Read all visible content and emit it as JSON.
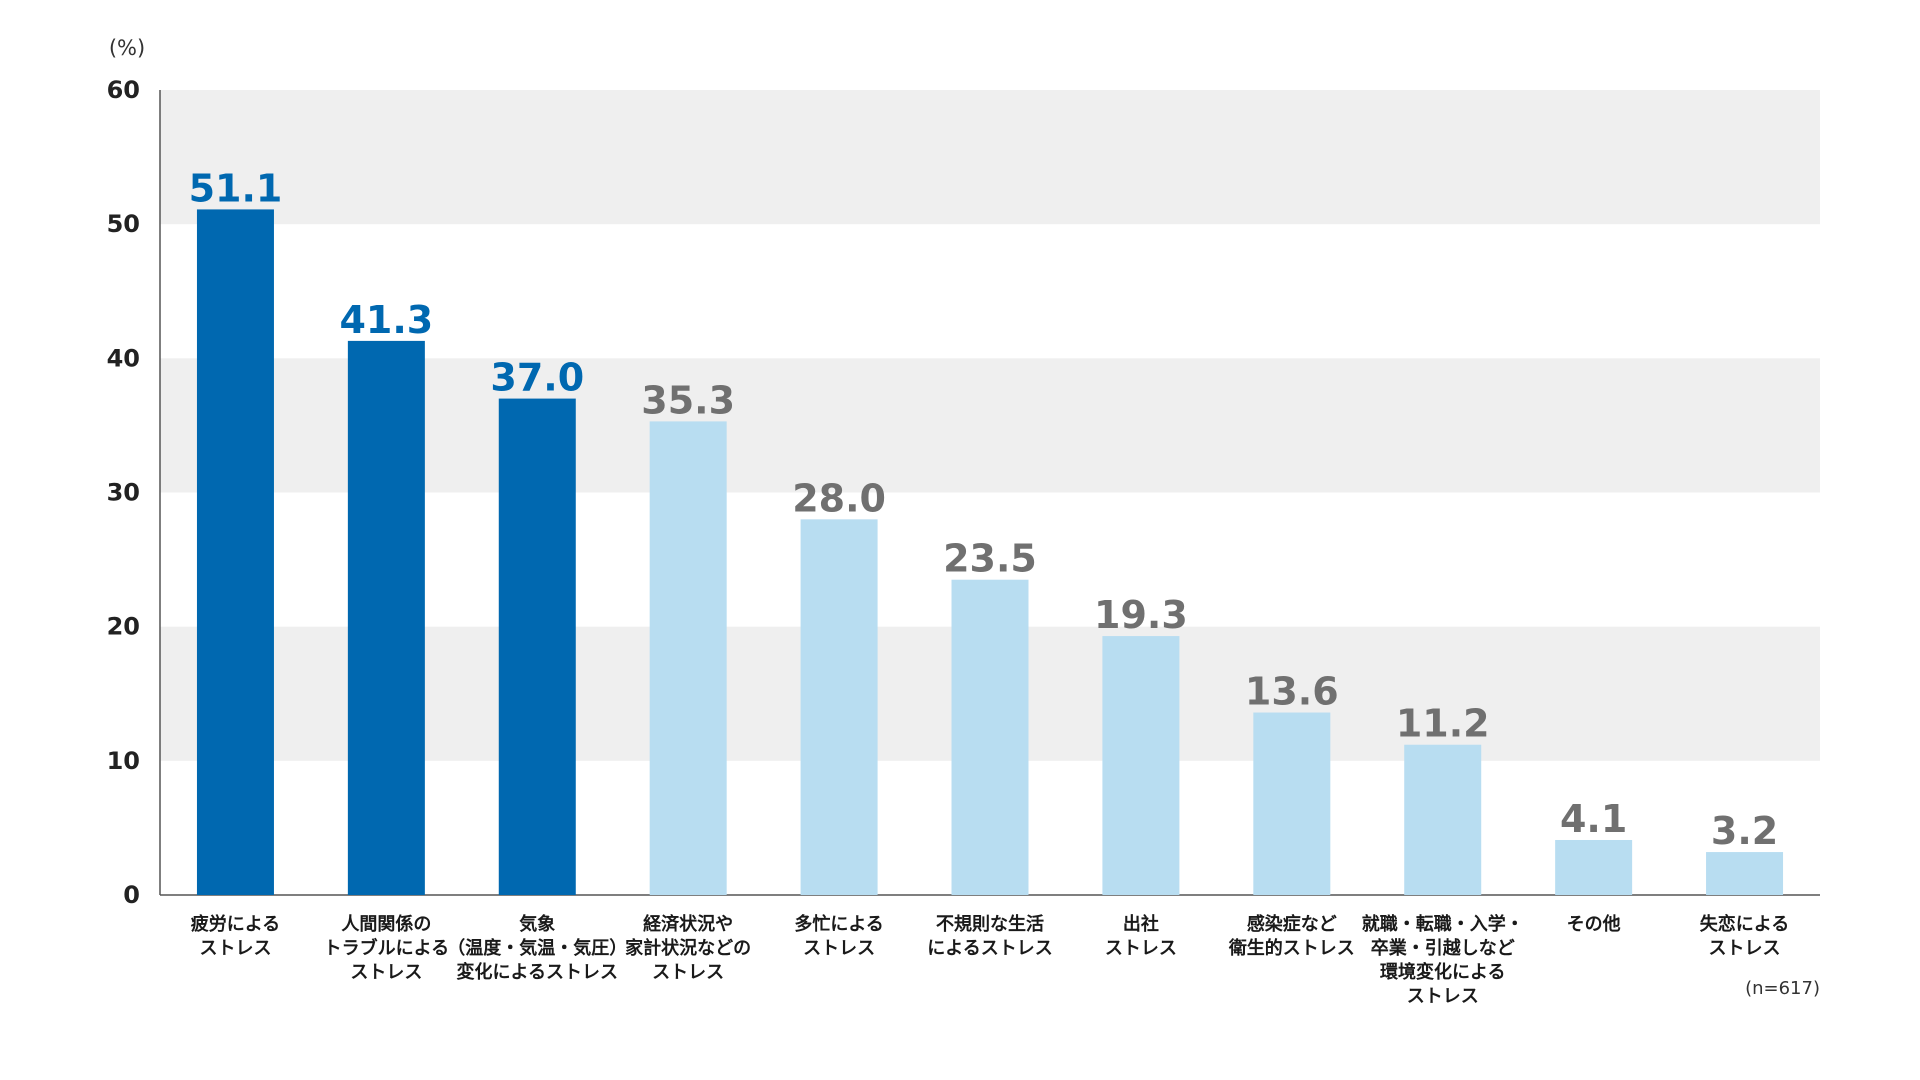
{
  "chart_data": {
    "type": "bar",
    "y_unit_label": "(%)",
    "sample_note": "(n=617)",
    "ylim": [
      0,
      60
    ],
    "yticks": [
      0,
      10,
      20,
      30,
      40,
      50,
      60
    ],
    "grid": "alternating-bands",
    "categories": [
      [
        "疲労による",
        "ストレス"
      ],
      [
        "人間関係の",
        "トラブルによる",
        "ストレス"
      ],
      [
        "気象",
        "（温度・気温・気圧）",
        "変化によるストレス"
      ],
      [
        "経済状況や",
        "家計状況などの",
        "ストレス"
      ],
      [
        "多忙による",
        "ストレス"
      ],
      [
        "不規則な生活",
        "によるストレス"
      ],
      [
        "出社",
        "ストレス"
      ],
      [
        "感染症など",
        "衛生的ストレス"
      ],
      [
        "就職・転職・入学・",
        "卒業・引越しなど",
        "環境変化による",
        "ストレス"
      ],
      [
        "その他"
      ],
      [
        "失恋による",
        "ストレス"
      ]
    ],
    "values": [
      51.1,
      41.3,
      37.0,
      35.3,
      28.0,
      23.5,
      19.3,
      13.6,
      11.2,
      4.1,
      3.2
    ],
    "value_labels": [
      "51.1",
      "41.3",
      "37.0",
      "35.3",
      "28.0",
      "23.5",
      "19.3",
      "13.6",
      "11.2",
      "4.1",
      "3.2"
    ],
    "highlight_count": 3
  },
  "colors": {
    "bar_highlight": "#0068B0",
    "bar_normal": "#B8DDF1",
    "label_highlight": "#0068B0",
    "label_normal": "#707070",
    "band": "#EFEFEF",
    "axis": "#555555"
  }
}
